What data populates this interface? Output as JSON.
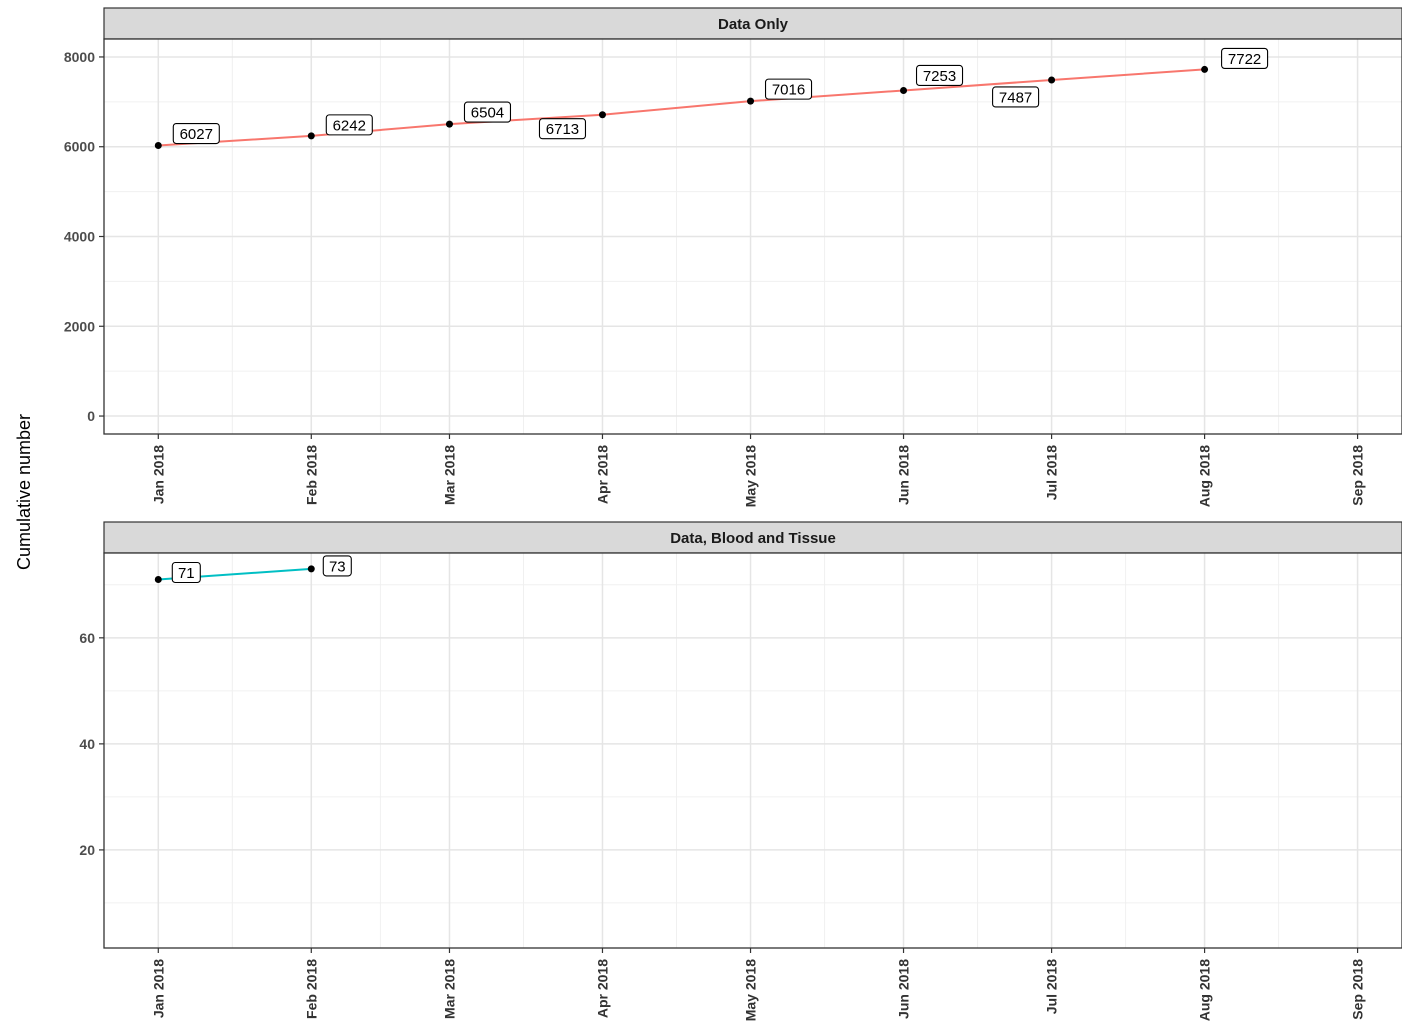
{
  "chart_data": {
    "type": "line",
    "ylabel": "Cumulative number",
    "x": [
      "2018-01-01",
      "2018-02-01",
      "2018-03-01",
      "2018-04-01",
      "2018-05-01",
      "2018-06-01",
      "2018-07-01",
      "2018-08-01"
    ],
    "x_tick_labels": [
      "Jan 2018",
      "Feb 2018",
      "Mar 2018",
      "Apr 2018",
      "May 2018",
      "Jun 2018",
      "Jul 2018",
      "Aug 2018",
      "Sep 2018"
    ],
    "grid": true,
    "legend": "none",
    "panels": [
      {
        "title": "Data Only",
        "color": "#F8766D",
        "ylim": [
          -400,
          8400
        ],
        "yticks": [
          0,
          2000,
          4000,
          6000,
          8000
        ],
        "x": [
          "2018-01-01",
          "2018-02-01",
          "2018-03-01",
          "2018-04-01",
          "2018-05-01",
          "2018-06-01",
          "2018-07-01",
          "2018-08-01"
        ],
        "values": [
          6027,
          6242,
          6504,
          6713,
          7016,
          7253,
          7487,
          7722
        ],
        "labels": [
          "6027",
          "6242",
          "6504",
          "6713",
          "7016",
          "7253",
          "7487",
          "7722"
        ]
      },
      {
        "title": "Data, Blood and Tissue",
        "color": "#00BFC4",
        "ylim": [
          1.5,
          76
        ],
        "yticks": [
          20,
          40,
          60
        ],
        "x": [
          "2018-01-01",
          "2018-02-01"
        ],
        "values": [
          71,
          73
        ],
        "labels": [
          "71",
          "73"
        ]
      }
    ]
  }
}
